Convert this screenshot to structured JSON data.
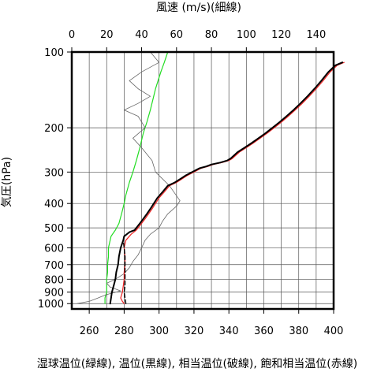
{
  "chart_data": {
    "type": "line",
    "title_top": "風速 (m/s)(細線)",
    "ylabel": "気圧(hPa)",
    "xlabel_bottom": "湿球温位(緑線), 温位(黒線), 相当温位(破線), 飽和相当温位(赤線)",
    "top_axis": {
      "min": 0,
      "max": 150,
      "ticks": [
        0,
        20,
        40,
        60,
        80,
        100,
        120,
        140
      ]
    },
    "bottom_axis": {
      "min": 250,
      "max": 400,
      "ticks": [
        260,
        280,
        300,
        320,
        340,
        360,
        380,
        400
      ]
    },
    "y_axis": {
      "scale": "log",
      "min": 100,
      "max": 1050,
      "ticks": [
        100,
        200,
        300,
        400,
        500,
        600,
        700,
        800,
        900,
        1000
      ]
    },
    "grid": true,
    "series": [
      {
        "key": "wet_bulb_potential_temperature",
        "color": "#22dd22",
        "width": 1.2,
        "dash": "",
        "axis": "bottom",
        "points": [
          [
            269,
            1000
          ],
          [
            269,
            950
          ],
          [
            270,
            900
          ],
          [
            270,
            850
          ],
          [
            270,
            800
          ],
          [
            270.5,
            750
          ],
          [
            270.5,
            700
          ],
          [
            271,
            650
          ],
          [
            271,
            600
          ],
          [
            272,
            560
          ],
          [
            272.5,
            540
          ],
          [
            275,
            510
          ],
          [
            277,
            480
          ],
          [
            278.5,
            440
          ],
          [
            280,
            400
          ],
          [
            281,
            370
          ],
          [
            283,
            330
          ],
          [
            285,
            300
          ],
          [
            287,
            270
          ],
          [
            289,
            240
          ],
          [
            291,
            210
          ],
          [
            293,
            190
          ],
          [
            295,
            170
          ],
          [
            298,
            140
          ],
          [
            301,
            120
          ],
          [
            303,
            110
          ],
          [
            305,
            100
          ]
        ]
      },
      {
        "key": "wind_speed",
        "color": "#666666",
        "width": 0.8,
        "dash": "",
        "axis": "top",
        "points": [
          [
            3,
            1000
          ],
          [
            10,
            980
          ],
          [
            15,
            950
          ],
          [
            20,
            920
          ],
          [
            28,
            890
          ],
          [
            22,
            860
          ],
          [
            20,
            830
          ],
          [
            25,
            800
          ],
          [
            30,
            760
          ],
          [
            33,
            720
          ],
          [
            35,
            680
          ],
          [
            38,
            640
          ],
          [
            40,
            600
          ],
          [
            42,
            560
          ],
          [
            45,
            530
          ],
          [
            50,
            500
          ],
          [
            52,
            470
          ],
          [
            55,
            440
          ],
          [
            60,
            410
          ],
          [
            62,
            390
          ],
          [
            56,
            340
          ],
          [
            48,
            300
          ],
          [
            46,
            270
          ],
          [
            40,
            240
          ],
          [
            35,
            220
          ],
          [
            42,
            200
          ],
          [
            38,
            180
          ],
          [
            30,
            170
          ],
          [
            38,
            160
          ],
          [
            45,
            150
          ],
          [
            38,
            140
          ],
          [
            33,
            130
          ],
          [
            40,
            120
          ],
          [
            50,
            110
          ],
          [
            45,
            100
          ]
        ]
      },
      {
        "key": "saturated_equivalent_potential_temperature",
        "color": "#ee2222",
        "width": 1.2,
        "dash": "",
        "axis": "bottom",
        "points": [
          [
            280,
            1000
          ],
          [
            279,
            980
          ],
          [
            278,
            950
          ],
          [
            279,
            900
          ],
          [
            279.5,
            850
          ],
          [
            280,
            800
          ],
          [
            280,
            750
          ],
          [
            280.5,
            700
          ],
          [
            280.5,
            650
          ],
          [
            280,
            600
          ],
          [
            281,
            560
          ],
          [
            284,
            530
          ],
          [
            287,
            510
          ],
          [
            290,
            480
          ],
          [
            292,
            460
          ],
          [
            294,
            440
          ],
          [
            296,
            420
          ],
          [
            298,
            400
          ],
          [
            300,
            380
          ],
          [
            303,
            360
          ],
          [
            306,
            340
          ],
          [
            310,
            330
          ],
          [
            313,
            320
          ],
          [
            316,
            310
          ],
          [
            320,
            300
          ],
          [
            324,
            290
          ],
          [
            328,
            285
          ],
          [
            331,
            280
          ],
          [
            336,
            275
          ],
          [
            340,
            270
          ],
          [
            342,
            265
          ],
          [
            346,
            250
          ],
          [
            350,
            240
          ],
          [
            354,
            230
          ],
          [
            358,
            220
          ],
          [
            362,
            210
          ],
          [
            366,
            200
          ],
          [
            370,
            190
          ],
          [
            374,
            180
          ],
          [
            378,
            170
          ],
          [
            382,
            160
          ],
          [
            386,
            150
          ],
          [
            390,
            140
          ],
          [
            394,
            130
          ],
          [
            398,
            120
          ],
          [
            402,
            113
          ],
          [
            406,
            110
          ]
        ]
      },
      {
        "key": "equivalent_potential_temperature",
        "color": "#000000",
        "width": 1.4,
        "dash": "5,3",
        "axis": "bottom",
        "points": [
          [
            281,
            1000
          ],
          [
            280.5,
            950
          ],
          [
            280,
            900
          ],
          [
            280.5,
            850
          ],
          [
            280.5,
            800
          ],
          [
            280.5,
            750
          ],
          [
            280.5,
            700
          ],
          [
            280.5,
            650
          ],
          [
            280,
            600
          ],
          [
            279.5,
            560
          ]
        ]
      },
      {
        "key": "potential_temperature",
        "color": "#000000",
        "width": 2,
        "dash": "",
        "axis": "bottom",
        "points": [
          [
            272,
            1000
          ],
          [
            272.5,
            950
          ],
          [
            273,
            900
          ],
          [
            274,
            850
          ],
          [
            275,
            800
          ],
          [
            275.5,
            750
          ],
          [
            276.5,
            700
          ],
          [
            277,
            650
          ],
          [
            278,
            600
          ],
          [
            279.5,
            560
          ],
          [
            280,
            540
          ],
          [
            283,
            520
          ],
          [
            286,
            510
          ],
          [
            289,
            480
          ],
          [
            291,
            460
          ],
          [
            293,
            440
          ],
          [
            295,
            420
          ],
          [
            297,
            400
          ],
          [
            299,
            380
          ],
          [
            302,
            360
          ],
          [
            305,
            340
          ],
          [
            309,
            330
          ],
          [
            312,
            320
          ],
          [
            315,
            310
          ],
          [
            319,
            300
          ],
          [
            323,
            290
          ],
          [
            327,
            285
          ],
          [
            330,
            280
          ],
          [
            335,
            275
          ],
          [
            339,
            270
          ],
          [
            341,
            265
          ],
          [
            345,
            250
          ],
          [
            349,
            240
          ],
          [
            353,
            230
          ],
          [
            357,
            220
          ],
          [
            361,
            210
          ],
          [
            365,
            200
          ],
          [
            369,
            190
          ],
          [
            373,
            180
          ],
          [
            377,
            170
          ],
          [
            381,
            160
          ],
          [
            385,
            150
          ],
          [
            389,
            140
          ],
          [
            393,
            130
          ],
          [
            397,
            120
          ],
          [
            401,
            113
          ],
          [
            405,
            110
          ]
        ]
      }
    ]
  }
}
